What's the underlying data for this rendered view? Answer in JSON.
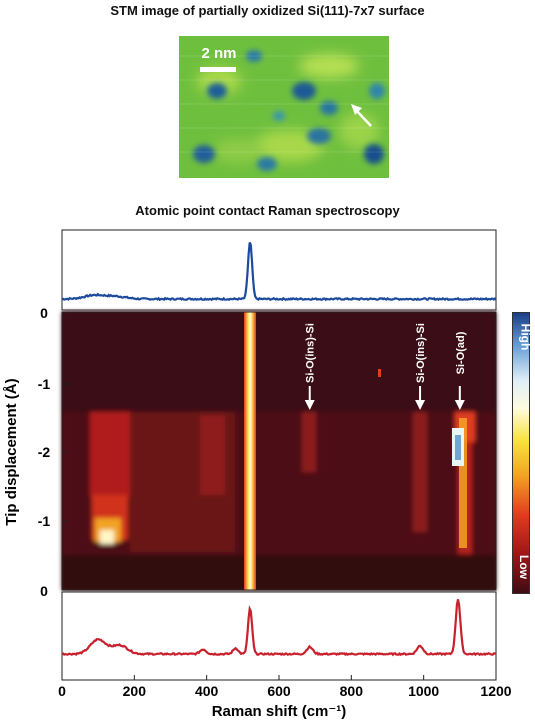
{
  "stm": {
    "title": "STM image of partially oxidized Si(111)-7x7 surface",
    "scale_label": "2 nm"
  },
  "raman": {
    "title": "Atomic point contact Raman spectroscopy"
  },
  "colorbar": {
    "high": "High",
    "low": "Low"
  },
  "colors": {
    "top_spectrum": "#1c4a9c",
    "bottom_spectrum": "#c8202c",
    "map_background": "#3e0b13",
    "map_bright": "#fff6c8"
  },
  "chart_data": {
    "type": "heatmap",
    "xlabel": "Raman shift (cm⁻¹)",
    "ylabel": "Tip displacement (Å)",
    "xlim": [
      0,
      1200
    ],
    "x_ticks": [
      0,
      200,
      400,
      600,
      800,
      1000,
      1200
    ],
    "y_tick_labels": [
      "0",
      "-1",
      "-2",
      "-1",
      "0"
    ],
    "top_spectrum_label": "0",
    "bottom_spectrum_label": "0",
    "annotations": [
      {
        "text": "Si-O(ins)-Si",
        "x": 685
      },
      {
        "text": "Si-O(ins)-Si",
        "x": 990
      },
      {
        "text": "Si-O(ad)",
        "x": 1100
      }
    ],
    "top_spectrum": {
      "peaks": [
        {
          "x": 90,
          "height": 0.06,
          "width": 40
        },
        {
          "x": 150,
          "height": 0.04,
          "width": 40
        },
        {
          "x": 520,
          "height": 0.92,
          "width": 8
        }
      ]
    },
    "bottom_spectrum": {
      "peaks": [
        {
          "x": 100,
          "height": 0.25,
          "width": 30
        },
        {
          "x": 160,
          "height": 0.15,
          "width": 30
        },
        {
          "x": 390,
          "height": 0.08,
          "width": 12
        },
        {
          "x": 480,
          "height": 0.1,
          "width": 10
        },
        {
          "x": 520,
          "height": 0.78,
          "width": 8
        },
        {
          "x": 685,
          "height": 0.12,
          "width": 12
        },
        {
          "x": 990,
          "height": 0.14,
          "width": 12
        },
        {
          "x": 1095,
          "height": 0.95,
          "width": 9
        }
      ]
    }
  }
}
